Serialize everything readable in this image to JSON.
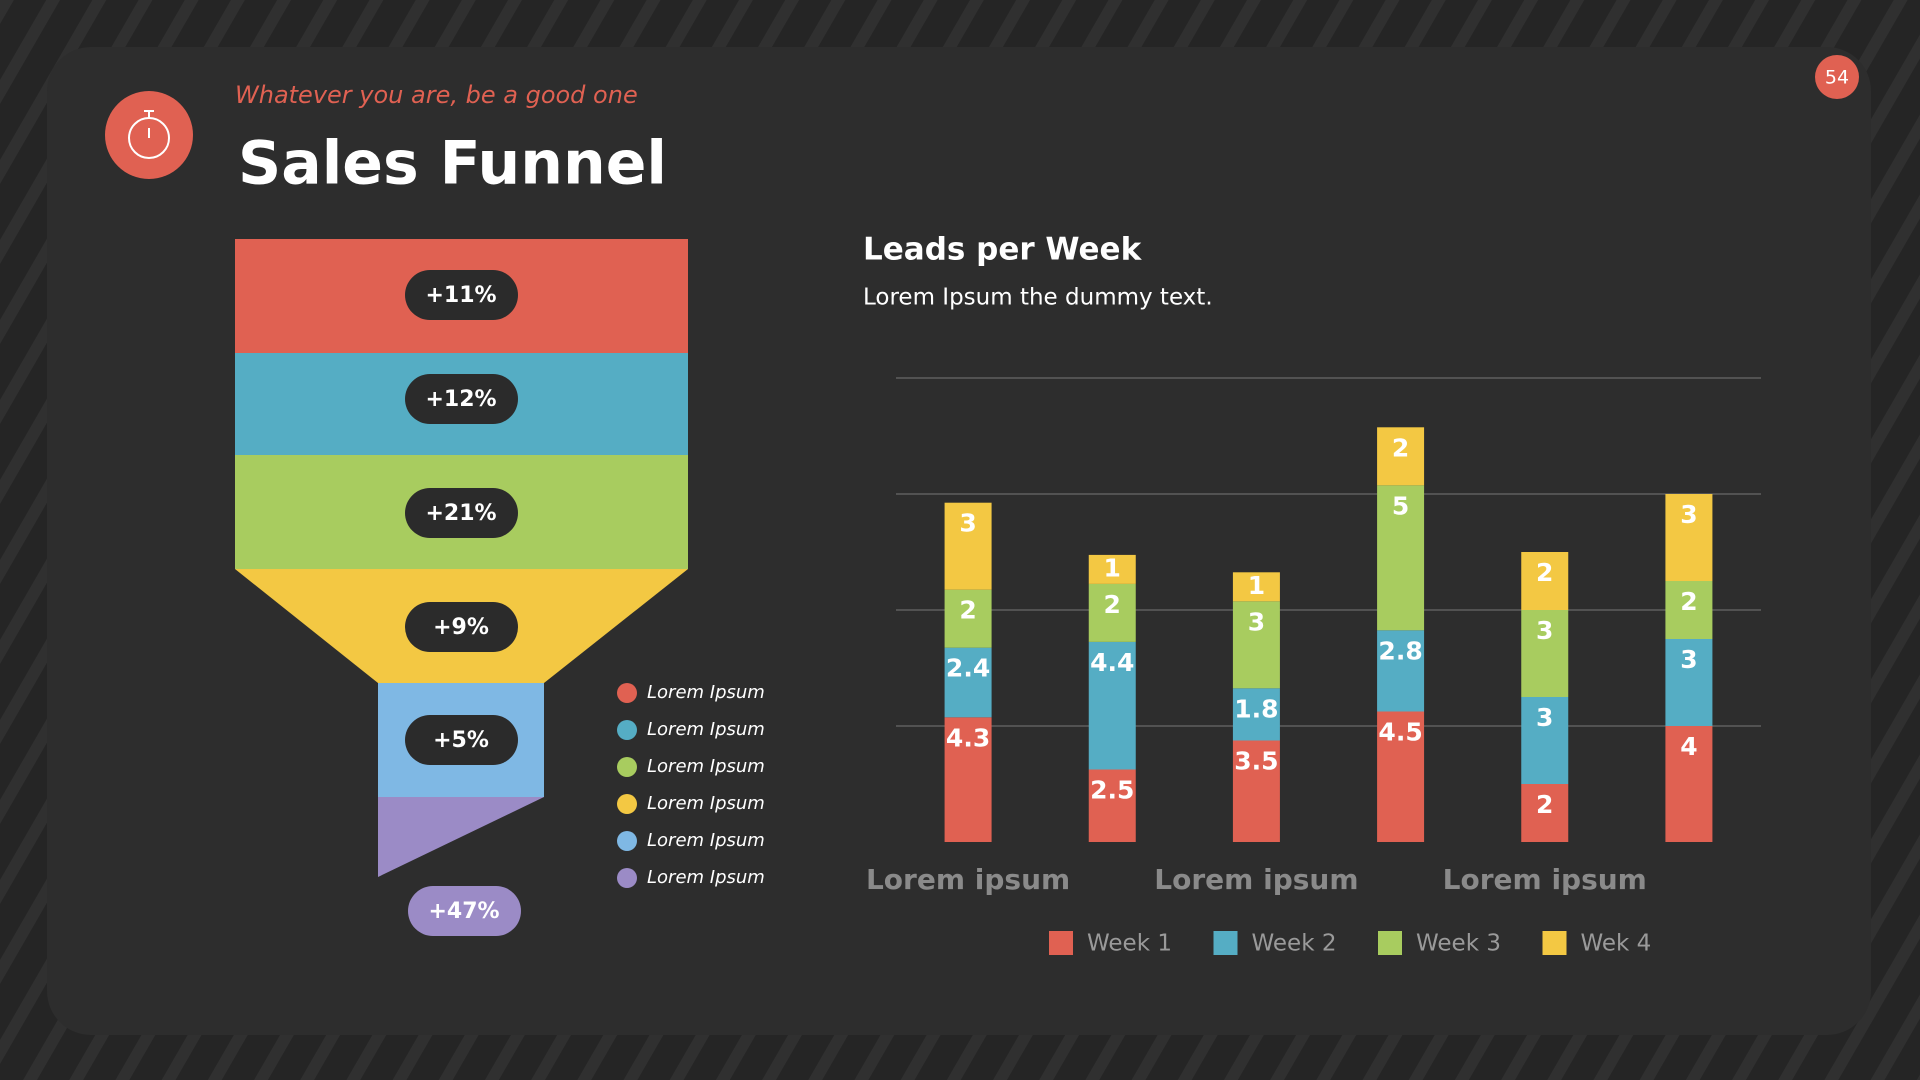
{
  "header": {
    "subtitle": "Whatever you are, be a good one",
    "title": "Sales Funnel",
    "page_number": "54"
  },
  "funnel": {
    "stages": [
      {
        "label": "+11%",
        "color": "#e06152"
      },
      {
        "label": "+12%",
        "color": "#55adc4"
      },
      {
        "label": "+21%",
        "color": "#a8cc5f"
      },
      {
        "label": "+9%",
        "color": "#f3c843"
      },
      {
        "label": "+5%",
        "color": "#7fb8e4"
      },
      {
        "label": "+47%",
        "color": "#9b8bc6"
      }
    ],
    "legend": [
      "Lorem Ipsum",
      "Lorem Ipsum",
      "Lorem Ipsum",
      "Lorem Ipsum",
      "Lorem Ipsum",
      "Lorem Ipsum"
    ]
  },
  "chart_data": {
    "type": "stacked_bar",
    "title": "Leads per Week",
    "subtitle": "Lorem Ipsum the dummy text.",
    "categories": [
      "Lorem ipsum",
      null,
      "Lorem ipsum",
      null,
      "Lorem ipsum",
      null
    ],
    "series": [
      {
        "name": "Week 1",
        "color": "#e06152",
        "values": [
          4.3,
          2.5,
          3.5,
          4.5,
          2,
          4
        ]
      },
      {
        "name": "Week 2",
        "color": "#55adc4",
        "values": [
          2.4,
          4.4,
          1.8,
          2.8,
          3,
          3
        ]
      },
      {
        "name": "Week 3",
        "color": "#a8cc5f",
        "values": [
          2,
          2,
          3,
          5,
          3,
          2
        ]
      },
      {
        "name": "Wek 4",
        "color": "#f3c843",
        "values": [
          3,
          1,
          1,
          2,
          2,
          3
        ]
      }
    ],
    "ylim": [
      0,
      16
    ],
    "yticks": [
      4,
      8,
      12,
      16
    ],
    "tick_labels": false,
    "grid": true,
    "legend": "bottom"
  }
}
